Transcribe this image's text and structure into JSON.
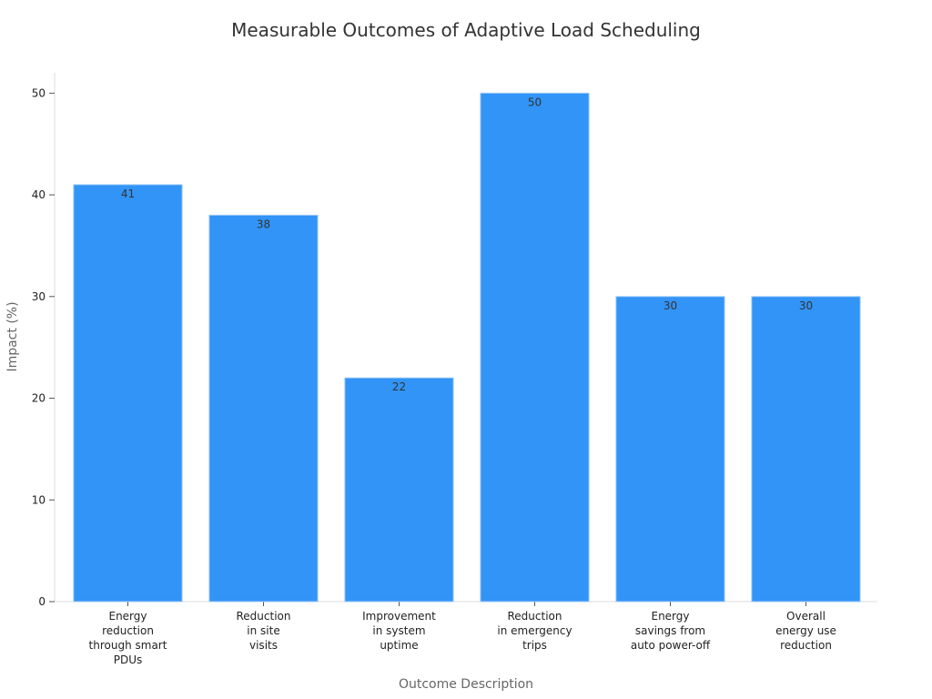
{
  "chart_data": {
    "type": "bar",
    "title": "Measurable Outcomes of Adaptive Load Scheduling",
    "xlabel": "Outcome Description",
    "ylabel": "Impact (%)",
    "categories": [
      [
        "Energy",
        "reduction",
        "through smart",
        "PDUs"
      ],
      [
        "Reduction",
        "in site",
        "visits"
      ],
      [
        "Improvement",
        "in system",
        "uptime"
      ],
      [
        "Reduction",
        "in emergency",
        "trips"
      ],
      [
        "Energy",
        "savings from",
        "auto power-off"
      ],
      [
        "Overall",
        "energy use",
        "reduction"
      ]
    ],
    "values": [
      41,
      38,
      22,
      50,
      30,
      30
    ],
    "ylim": [
      0,
      52
    ],
    "yticks": [
      0,
      10,
      20,
      30,
      40,
      50
    ],
    "bar_color": "#3194f6",
    "data_labels": true,
    "grid": false,
    "legend": "none"
  }
}
